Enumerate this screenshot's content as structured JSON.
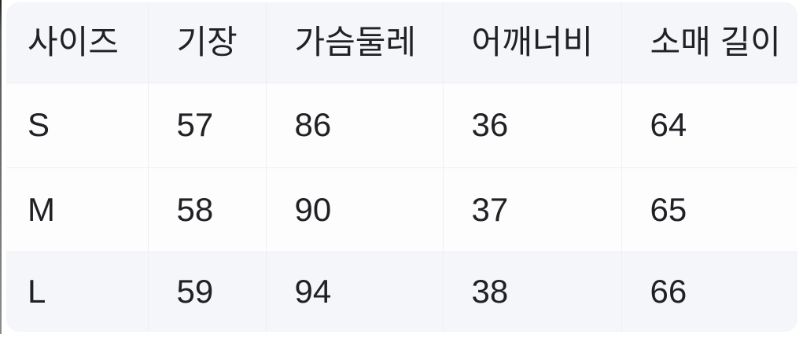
{
  "chart_data": {
    "type": "table",
    "columns": [
      "사이즈",
      "기장",
      "가슴둘레",
      "어깨너비",
      "소매 길이"
    ],
    "rows": [
      [
        "S",
        "57",
        "86",
        "36",
        "64"
      ],
      [
        "M",
        "58",
        "90",
        "37",
        "65"
      ],
      [
        "L",
        "59",
        "94",
        "38",
        "66"
      ]
    ],
    "layout_hints": {
      "header_row_shaded": true,
      "last_row_shaded": true,
      "grid": "faint",
      "corner_radius": "rounded"
    }
  },
  "colors": {
    "page_bg": "#ffffff",
    "header_bg": "#f4f6fa",
    "body_row_bg": "#fdfdfe",
    "last_row_bg": "#f4f6fa",
    "grid_line": "#edeff4",
    "text": "#202124",
    "left_edge_line": "#555555"
  }
}
